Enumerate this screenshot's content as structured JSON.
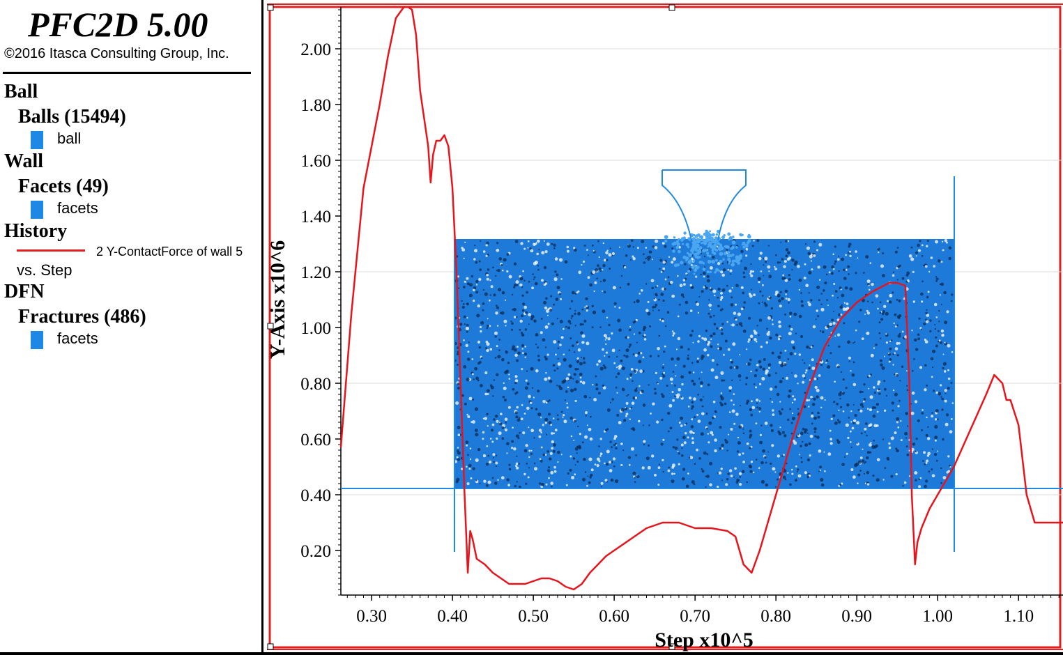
{
  "header": {
    "title": "PFC2D 5.00",
    "copyright": "©2016 Itasca Consulting Group, Inc."
  },
  "legend": {
    "ball": {
      "category": "Ball",
      "group": "Balls (15494)",
      "item": "ball",
      "color": "#1e88e5"
    },
    "wall": {
      "category": "Wall",
      "group": "Facets (49)",
      "item": "facets",
      "color": "#1e88e5"
    },
    "history": {
      "category": "History",
      "item": "2 Y-ContactForce of wall 5",
      "vs": "vs. Step",
      "color": "#e02020"
    },
    "dfn": {
      "category": "DFN",
      "group": "Fractures (486)",
      "item": "facets",
      "color": "#1e88e5"
    }
  },
  "colors": {
    "history_line": "#e8141c",
    "balls": "#1e88e5",
    "walls": "#1e88e5",
    "frame": "#e02020"
  },
  "chart_data": {
    "type": "line",
    "xlabel": "Step x10^5",
    "ylabel": "Y-Axis x10^6",
    "xlim": [
      0.262,
      1.155
    ],
    "ylim": [
      0.04,
      2.15
    ],
    "xticks": [
      "0.30",
      "0.40",
      "0.50",
      "0.60",
      "0.70",
      "0.80",
      "0.90",
      "1.00",
      "1.10"
    ],
    "yticks": [
      "0.20",
      "0.40",
      "0.60",
      "0.80",
      "1.00",
      "1.20",
      "1.40",
      "1.60",
      "1.80",
      "2.00"
    ],
    "grid": "y",
    "series": [
      {
        "name": "2 Y-ContactForce of wall 5",
        "x": [
          0.262,
          0.275,
          0.29,
          0.3,
          0.31,
          0.32,
          0.33,
          0.34,
          0.345,
          0.35,
          0.355,
          0.36,
          0.365,
          0.37,
          0.373,
          0.376,
          0.38,
          0.385,
          0.39,
          0.395,
          0.4,
          0.405,
          0.41,
          0.415,
          0.419,
          0.422,
          0.425,
          0.43,
          0.44,
          0.45,
          0.46,
          0.47,
          0.48,
          0.49,
          0.5,
          0.51,
          0.52,
          0.53,
          0.54,
          0.55,
          0.56,
          0.57,
          0.58,
          0.59,
          0.6,
          0.62,
          0.64,
          0.66,
          0.68,
          0.7,
          0.72,
          0.74,
          0.75,
          0.76,
          0.77,
          0.78,
          0.8,
          0.82,
          0.84,
          0.86,
          0.88,
          0.9,
          0.92,
          0.94,
          0.95,
          0.96,
          0.965,
          0.968,
          0.972,
          0.975,
          0.98,
          0.99,
          1.0,
          1.01,
          1.02,
          1.04,
          1.06,
          1.07,
          1.08,
          1.085,
          1.09,
          1.1,
          1.11,
          1.12,
          1.13,
          1.14,
          1.155
        ],
        "y": [
          0.57,
          1.05,
          1.5,
          1.65,
          1.8,
          1.97,
          2.11,
          2.15,
          2.15,
          2.14,
          2.05,
          1.85,
          1.75,
          1.65,
          1.52,
          1.62,
          1.67,
          1.67,
          1.69,
          1.65,
          1.5,
          1.2,
          0.8,
          0.4,
          0.12,
          0.27,
          0.24,
          0.17,
          0.15,
          0.12,
          0.1,
          0.08,
          0.08,
          0.08,
          0.09,
          0.1,
          0.1,
          0.09,
          0.07,
          0.06,
          0.08,
          0.12,
          0.15,
          0.18,
          0.2,
          0.24,
          0.28,
          0.3,
          0.3,
          0.28,
          0.28,
          0.27,
          0.25,
          0.15,
          0.12,
          0.2,
          0.4,
          0.6,
          0.78,
          0.93,
          1.03,
          1.09,
          1.13,
          1.16,
          1.16,
          1.15,
          0.8,
          0.4,
          0.15,
          0.23,
          0.28,
          0.35,
          0.4,
          0.45,
          0.5,
          0.63,
          0.76,
          0.83,
          0.8,
          0.74,
          0.74,
          0.65,
          0.4,
          0.3,
          0.3,
          0.3,
          0.3
        ]
      }
    ]
  }
}
